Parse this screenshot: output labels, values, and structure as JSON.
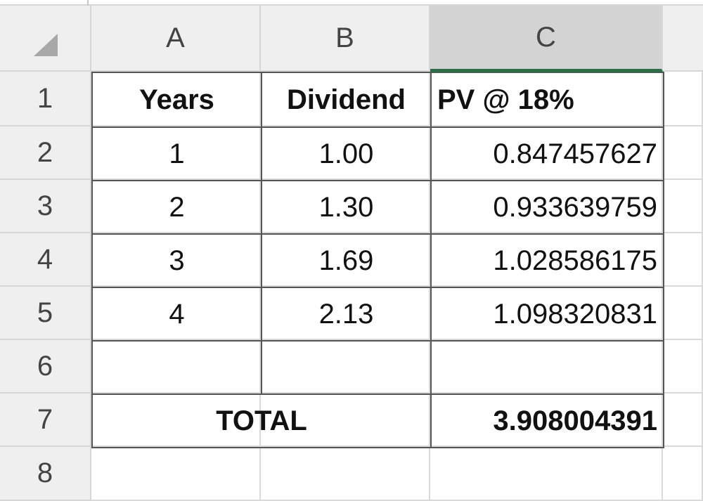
{
  "sheet": {
    "column_headers": [
      "A",
      "B",
      "C"
    ],
    "row_headers": [
      1,
      2,
      3,
      4,
      5,
      6,
      7,
      8
    ],
    "table": {
      "header": [
        "Years",
        "Dividend",
        "PV @ 18%"
      ],
      "rows": [
        [
          "1",
          "1.00",
          "0.847457627"
        ],
        [
          "2",
          "1.30",
          "0.933639759"
        ],
        [
          "3",
          "1.69",
          "1.028586175"
        ],
        [
          "4",
          "2.13",
          "1.098320831"
        ]
      ],
      "total_label": "TOTAL",
      "total_value": "3.908004391"
    }
  }
}
